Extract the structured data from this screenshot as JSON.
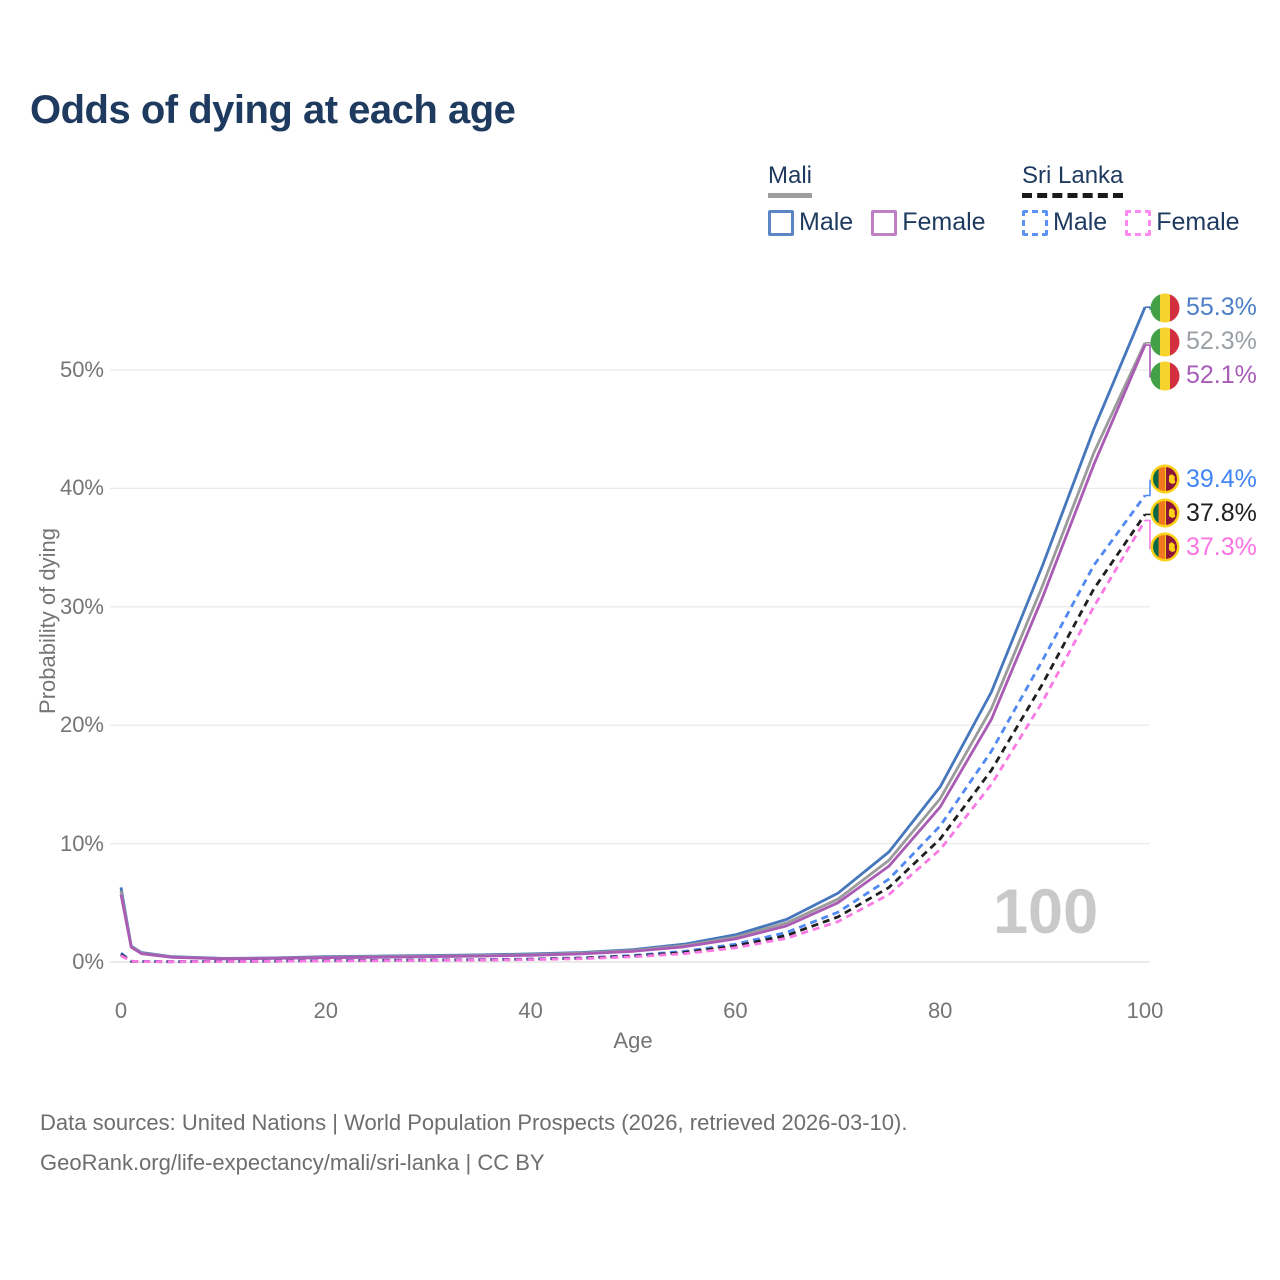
{
  "title": "Odds of dying at each age",
  "legend": {
    "mali": {
      "header": "Mali",
      "male": "Male",
      "female": "Female"
    },
    "sri_lanka": {
      "header": "Sri Lanka",
      "male": "Male",
      "female": "Female"
    }
  },
  "watermark": "100",
  "footer": {
    "line1": "Data sources: United Nations | World Population Prospects (2026, retrieved 2026-03-10).",
    "line2": "GeoRank.org/life-expectancy/mali/sri-lanka | CC BY"
  },
  "chart_data": {
    "type": "line",
    "title": "Odds of dying at each age",
    "xlabel": "Age",
    "ylabel": "Probability of dying",
    "xlim": [
      0,
      100
    ],
    "ylim": [
      0,
      57
    ],
    "xticks": [
      0,
      20,
      40,
      60,
      80,
      100
    ],
    "yticks": [
      "0%",
      "10%",
      "20%",
      "30%",
      "40%",
      "50%"
    ],
    "ytick_values": [
      0,
      10,
      20,
      30,
      40,
      50
    ],
    "grid": "horizontal",
    "legend_position": "top-right",
    "x": [
      0,
      1,
      2,
      5,
      10,
      15,
      20,
      25,
      30,
      35,
      40,
      45,
      50,
      55,
      60,
      65,
      70,
      75,
      80,
      85,
      90,
      95,
      100
    ],
    "series": [
      {
        "name": "Mali Male",
        "country": "Mali",
        "sex": "Male",
        "dash": "solid",
        "color": "#4677bd",
        "label_color": "#4d7fc6",
        "flag": "mali",
        "end_label": "55.3%",
        "values": [
          6.3,
          1.35,
          0.8,
          0.45,
          0.3,
          0.35,
          0.45,
          0.5,
          0.55,
          0.6,
          0.68,
          0.8,
          1.05,
          1.5,
          2.3,
          3.6,
          5.8,
          9.3,
          14.8,
          22.8,
          33.5,
          45.0,
          55.3
        ]
      },
      {
        "name": "Mali Both sexes",
        "country": "Mali",
        "sex": "Both",
        "dash": "solid",
        "color": "#9b9b9b",
        "label_color": "#9aa0a6",
        "flag": "mali",
        "end_label": "52.3%",
        "values": [
          6.0,
          1.3,
          0.75,
          0.42,
          0.28,
          0.32,
          0.4,
          0.45,
          0.5,
          0.55,
          0.62,
          0.74,
          0.97,
          1.38,
          2.1,
          3.3,
          5.3,
          8.6,
          13.8,
          21.4,
          31.8,
          43.0,
          52.3
        ]
      },
      {
        "name": "Mali Female",
        "country": "Mali",
        "sex": "Female",
        "dash": "solid",
        "color": "#aa5cb4",
        "label_color": "#a75cb8",
        "flag": "mali",
        "end_label": "52.1%",
        "values": [
          5.7,
          1.25,
          0.7,
          0.4,
          0.27,
          0.3,
          0.36,
          0.4,
          0.45,
          0.5,
          0.57,
          0.68,
          0.9,
          1.28,
          1.95,
          3.05,
          5.0,
          8.1,
          13.1,
          20.5,
          30.8,
          42.0,
          52.1
        ]
      },
      {
        "name": "Sri Lanka Male",
        "country": "Sri Lanka",
        "sex": "Male",
        "dash": "dashed",
        "color": "#5189f2",
        "label_color": "#4285f4",
        "flag": "sri-lanka",
        "end_label": "39.4%",
        "values": [
          0.75,
          0.06,
          0.04,
          0.03,
          0.04,
          0.08,
          0.12,
          0.15,
          0.17,
          0.2,
          0.25,
          0.35,
          0.55,
          0.9,
          1.5,
          2.5,
          4.2,
          7.0,
          11.5,
          17.8,
          25.5,
          33.5,
          39.4
        ]
      },
      {
        "name": "Sri Lanka Both sexes",
        "country": "Sri Lanka",
        "sex": "Both",
        "dash": "dashed",
        "color": "#1f1f1f",
        "label_color": "#1f1f1f",
        "flag": "sri-lanka",
        "end_label": "37.8%",
        "values": [
          0.65,
          0.055,
          0.035,
          0.028,
          0.04,
          0.07,
          0.11,
          0.13,
          0.15,
          0.18,
          0.23,
          0.32,
          0.5,
          0.8,
          1.35,
          2.25,
          3.8,
          6.3,
          10.4,
          16.2,
          23.5,
          31.5,
          37.8
        ]
      },
      {
        "name": "Sri Lanka Female",
        "country": "Sri Lanka",
        "sex": "Female",
        "dash": "dashed",
        "color": "#f97ae5",
        "label_color": "#fa75e3",
        "flag": "sri-lanka",
        "end_label": "37.3%",
        "values": [
          0.55,
          0.05,
          0.03,
          0.025,
          0.035,
          0.06,
          0.09,
          0.11,
          0.13,
          0.16,
          0.2,
          0.28,
          0.44,
          0.7,
          1.2,
          2.0,
          3.4,
          5.7,
          9.5,
          15.0,
          22.0,
          30.0,
          37.3
        ]
      }
    ],
    "hovered_x_value": "100"
  }
}
